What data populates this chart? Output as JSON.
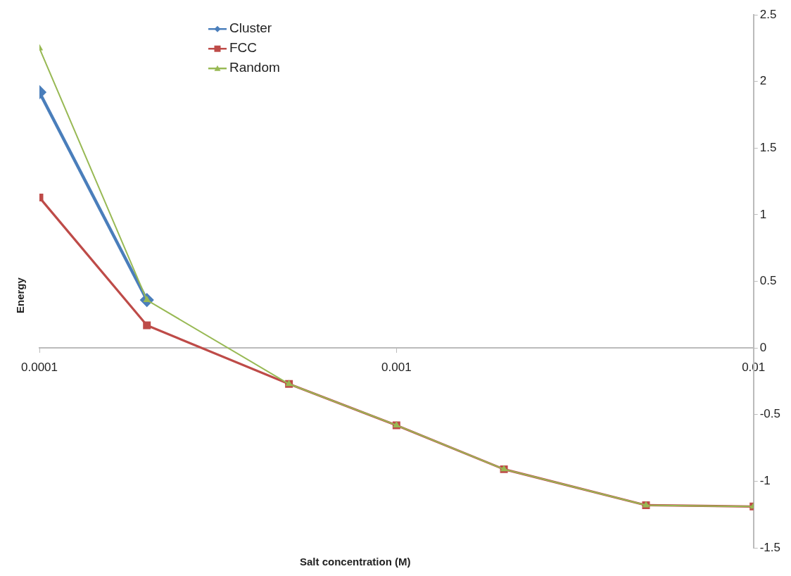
{
  "chart_data": {
    "type": "line",
    "xlabel": "Salt concentration (M)",
    "ylabel": "Energy",
    "x": [
      0.0001,
      0.0002,
      0.0005,
      0.001,
      0.002,
      0.005,
      0.01
    ],
    "series": [
      {
        "name": "Cluster",
        "color": "#4a7ebb",
        "marker": "diamond",
        "values": [
          1.92,
          0.36,
          null,
          null,
          null,
          null,
          null
        ]
      },
      {
        "name": "FCC",
        "color": "#be4b48",
        "marker": "square",
        "values": [
          1.13,
          0.17,
          -0.27,
          -0.58,
          -0.91,
          -1.18,
          -1.19
        ]
      },
      {
        "name": "Random",
        "color": "#98b954",
        "marker": "triangle",
        "values": [
          2.25,
          0.36,
          -0.27,
          -0.58,
          -0.91,
          -1.18,
          -1.19
        ]
      }
    ],
    "log": "x",
    "xlim": [
      0.0001,
      0.01
    ],
    "xticks": [
      0.0001,
      0.001,
      0.01
    ],
    "ylim": [
      -1.5,
      2.5
    ],
    "yticks": [
      -1.5,
      -1,
      -0.5,
      0,
      0.5,
      1,
      1.5,
      2,
      2.5
    ],
    "grid": false,
    "legend": "top",
    "line_style": "solid"
  }
}
